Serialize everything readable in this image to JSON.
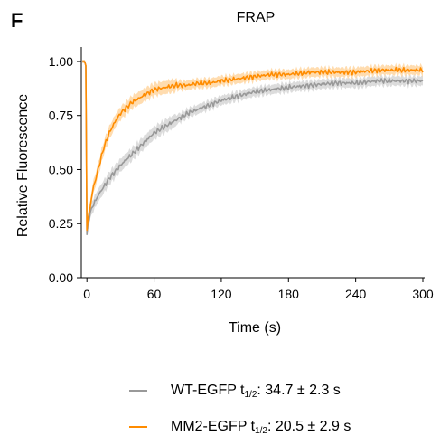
{
  "panel_label": "F",
  "chart_data": {
    "type": "line",
    "title": "FRAP",
    "xlabel": "Time (s)",
    "ylabel": "Relative Fluorescence",
    "xlim": [
      -5,
      300
    ],
    "ylim": [
      0,
      1.05
    ],
    "x_ticks": [
      0,
      60,
      120,
      180,
      240,
      300
    ],
    "x_tick_labels": [
      "0",
      "60",
      "120",
      "180",
      "240",
      "300"
    ],
    "y_ticks": [
      0.0,
      0.25,
      0.5,
      0.75,
      1.0
    ],
    "y_tick_labels": [
      "0.00",
      "0.25",
      "0.50",
      "0.75",
      "1.00"
    ],
    "grid": false,
    "legend_position": "bottom",
    "x": [
      -4,
      -2,
      -1,
      0,
      1,
      3,
      5,
      10,
      15,
      20,
      25,
      30,
      40,
      50,
      60,
      70,
      80,
      90,
      100,
      110,
      120,
      135,
      150,
      165,
      180,
      200,
      220,
      240,
      260,
      280,
      300
    ],
    "series": [
      {
        "name": "WT-EGFP",
        "name_subscript": "1/2",
        "name_suffix": ": 34.7 ± 2.3 s",
        "color": "#999999",
        "band_color": "#d3d3d3",
        "values": [
          1.0,
          1.0,
          0.98,
          0.2,
          0.25,
          0.3,
          0.33,
          0.38,
          0.42,
          0.46,
          0.49,
          0.52,
          0.57,
          0.62,
          0.67,
          0.7,
          0.73,
          0.76,
          0.78,
          0.8,
          0.82,
          0.84,
          0.86,
          0.87,
          0.88,
          0.89,
          0.9,
          0.9,
          0.91,
          0.91,
          0.91
        ]
      },
      {
        "name": "MM2-EGFP",
        "name_subscript": "1/2",
        "name_suffix": ": 20.5 ± 2.9 s",
        "color": "#ff8c00",
        "band_color": "#ffd39b",
        "values": [
          1.0,
          1.0,
          0.98,
          0.22,
          0.27,
          0.33,
          0.4,
          0.5,
          0.6,
          0.67,
          0.72,
          0.76,
          0.81,
          0.84,
          0.87,
          0.88,
          0.89,
          0.89,
          0.9,
          0.9,
          0.91,
          0.92,
          0.93,
          0.94,
          0.94,
          0.95,
          0.95,
          0.95,
          0.96,
          0.96,
          0.96
        ]
      }
    ]
  }
}
